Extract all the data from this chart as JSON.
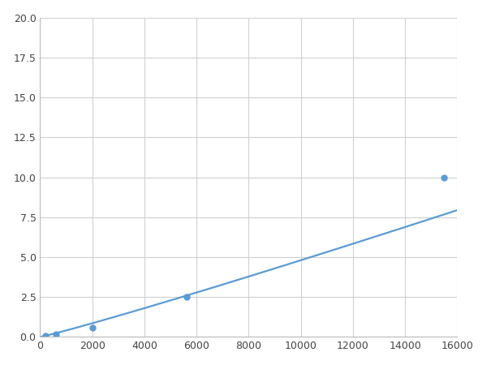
{
  "x": [
    200,
    600,
    2000,
    5625,
    15500
  ],
  "y": [
    0.1,
    0.2,
    0.6,
    2.5,
    10.0
  ],
  "line_color": "#5b9bd5",
  "marker_color": "#5b9bd5",
  "marker_size": 5,
  "line_width": 1.6,
  "xlim": [
    0,
    16000
  ],
  "ylim": [
    0,
    20
  ],
  "xticks": [
    0,
    2000,
    4000,
    6000,
    8000,
    10000,
    12000,
    14000,
    16000
  ],
  "yticks": [
    0.0,
    2.5,
    5.0,
    7.5,
    10.0,
    12.5,
    15.0,
    17.5,
    20.0
  ],
  "grid": true,
  "background_color": "#ffffff",
  "grid_color": "#d0d0d0"
}
